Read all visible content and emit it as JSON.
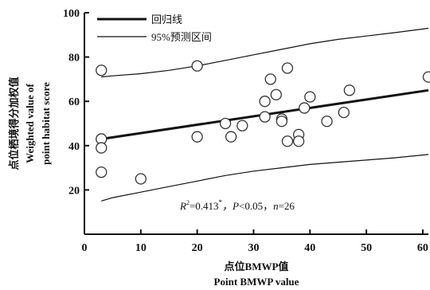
{
  "chart_data": {
    "type": "scatter",
    "xlabel_cn": "点位BMWP值",
    "xlabel_en": "Point BMWP value",
    "ylabel_cn": "点位栖境得分加权值",
    "ylabel_en_1": "Weighted value of",
    "ylabel_en_2": "point habitat score",
    "xlim": [
      0,
      61
    ],
    "ylim": [
      0,
      100
    ],
    "xticks": [
      0,
      10,
      20,
      30,
      40,
      50,
      60
    ],
    "yticks": [
      20,
      40,
      60,
      80,
      100
    ],
    "grid": false,
    "legend_position": "top-left",
    "legend": [
      {
        "label": "回归线",
        "style": "thick-line"
      },
      {
        "label": "95%预测区间",
        "style": "thin-line"
      }
    ],
    "annotation": {
      "r2_label": "R",
      "r2_sup": "2",
      "r2_value": "=0.413",
      "r2_star": "*",
      "p_label": "，P",
      "p_value": "<0.05，",
      "n_label": "n",
      "n_value": "=26"
    },
    "regression": {
      "x": [
        3,
        61
      ],
      "y": [
        43,
        65
      ]
    },
    "prediction_upper": {
      "x": [
        3,
        5,
        10,
        15,
        20,
        25,
        30,
        35,
        40,
        45,
        50,
        55,
        61
      ],
      "y": [
        71,
        71.5,
        72.5,
        74,
        76,
        78.5,
        81,
        83.5,
        86,
        88,
        89.5,
        91,
        93
      ]
    },
    "prediction_lower": {
      "x": [
        3,
        5,
        10,
        15,
        20,
        25,
        30,
        35,
        40,
        45,
        50,
        55,
        61
      ],
      "y": [
        15,
        16.5,
        19,
        21.5,
        24,
        26.5,
        28.5,
        30,
        31.5,
        32.5,
        33.5,
        34.5,
        36
      ]
    },
    "points": [
      {
        "x": 3,
        "y": 74
      },
      {
        "x": 3,
        "y": 43
      },
      {
        "x": 3,
        "y": 39
      },
      {
        "x": 3,
        "y": 28
      },
      {
        "x": 10,
        "y": 25
      },
      {
        "x": 20,
        "y": 76
      },
      {
        "x": 20,
        "y": 44
      },
      {
        "x": 25,
        "y": 50
      },
      {
        "x": 26,
        "y": 44
      },
      {
        "x": 28,
        "y": 49
      },
      {
        "x": 32,
        "y": 60
      },
      {
        "x": 32,
        "y": 53
      },
      {
        "x": 33,
        "y": 70
      },
      {
        "x": 34,
        "y": 63
      },
      {
        "x": 35,
        "y": 52
      },
      {
        "x": 35,
        "y": 51
      },
      {
        "x": 36,
        "y": 75
      },
      {
        "x": 36,
        "y": 42
      },
      {
        "x": 38,
        "y": 45
      },
      {
        "x": 38,
        "y": 42
      },
      {
        "x": 39,
        "y": 57
      },
      {
        "x": 40,
        "y": 62
      },
      {
        "x": 43,
        "y": 51
      },
      {
        "x": 46,
        "y": 55
      },
      {
        "x": 47,
        "y": 65
      },
      {
        "x": 61,
        "y": 71
      }
    ]
  }
}
